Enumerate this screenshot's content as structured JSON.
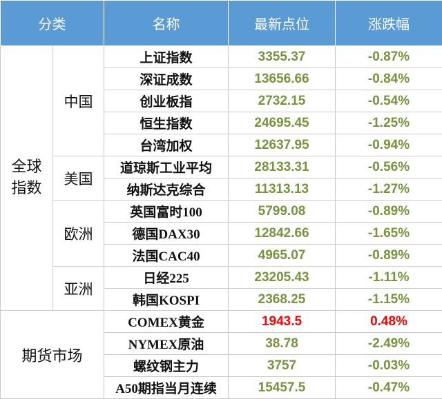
{
  "table": {
    "header": [
      "分类",
      "名称",
      "最新点位",
      "涨跌幅"
    ],
    "colors": {
      "up": "#ff0000",
      "down": "#77933c"
    },
    "groups": [
      {
        "label": "全球指数",
        "regions": [
          {
            "label": "中国",
            "rows": [
              [
                "上证指数",
                "3355.37",
                "-0.87%"
              ],
              [
                "深证成数",
                "13656.66",
                "-0.84%"
              ],
              [
                "创业板指",
                "2732.15",
                "-0.54%"
              ],
              [
                "恒生指数",
                "24695.45",
                "-1.25%"
              ],
              [
                "台湾加权",
                "12637.95",
                "-0.94%"
              ]
            ]
          },
          {
            "label": "美国",
            "rows": [
              [
                "道琼斯工业平均",
                "28133.31",
                "-0.56%"
              ],
              [
                "纳斯达克综合",
                "11313.13",
                "-1.27%"
              ]
            ]
          },
          {
            "label": "欧洲",
            "rows": [
              [
                "英国富时100",
                "5799.08",
                "-0.89%"
              ],
              [
                "德国DAX30",
                "12842.66",
                "-1.65%"
              ],
              [
                "法国CAC40",
                "4965.07",
                "-0.89%"
              ]
            ]
          },
          {
            "label": "亚洲",
            "rows": [
              [
                "日经225",
                "23205.43",
                "-1.11%"
              ],
              [
                "韩国KOSPI",
                "2368.25",
                "-1.15%"
              ]
            ]
          }
        ]
      },
      {
        "label": "期货市场",
        "rows": [
          [
            "COMEX黄金",
            "1943.5",
            "0.48%"
          ],
          [
            "NYMEX原油",
            "38.78",
            "-2.49%"
          ],
          [
            "螺纹钢主力",
            "3757",
            "-0.03%"
          ],
          [
            "A50期指当月连续",
            "15457.5",
            "-0.47%"
          ]
        ]
      }
    ]
  }
}
